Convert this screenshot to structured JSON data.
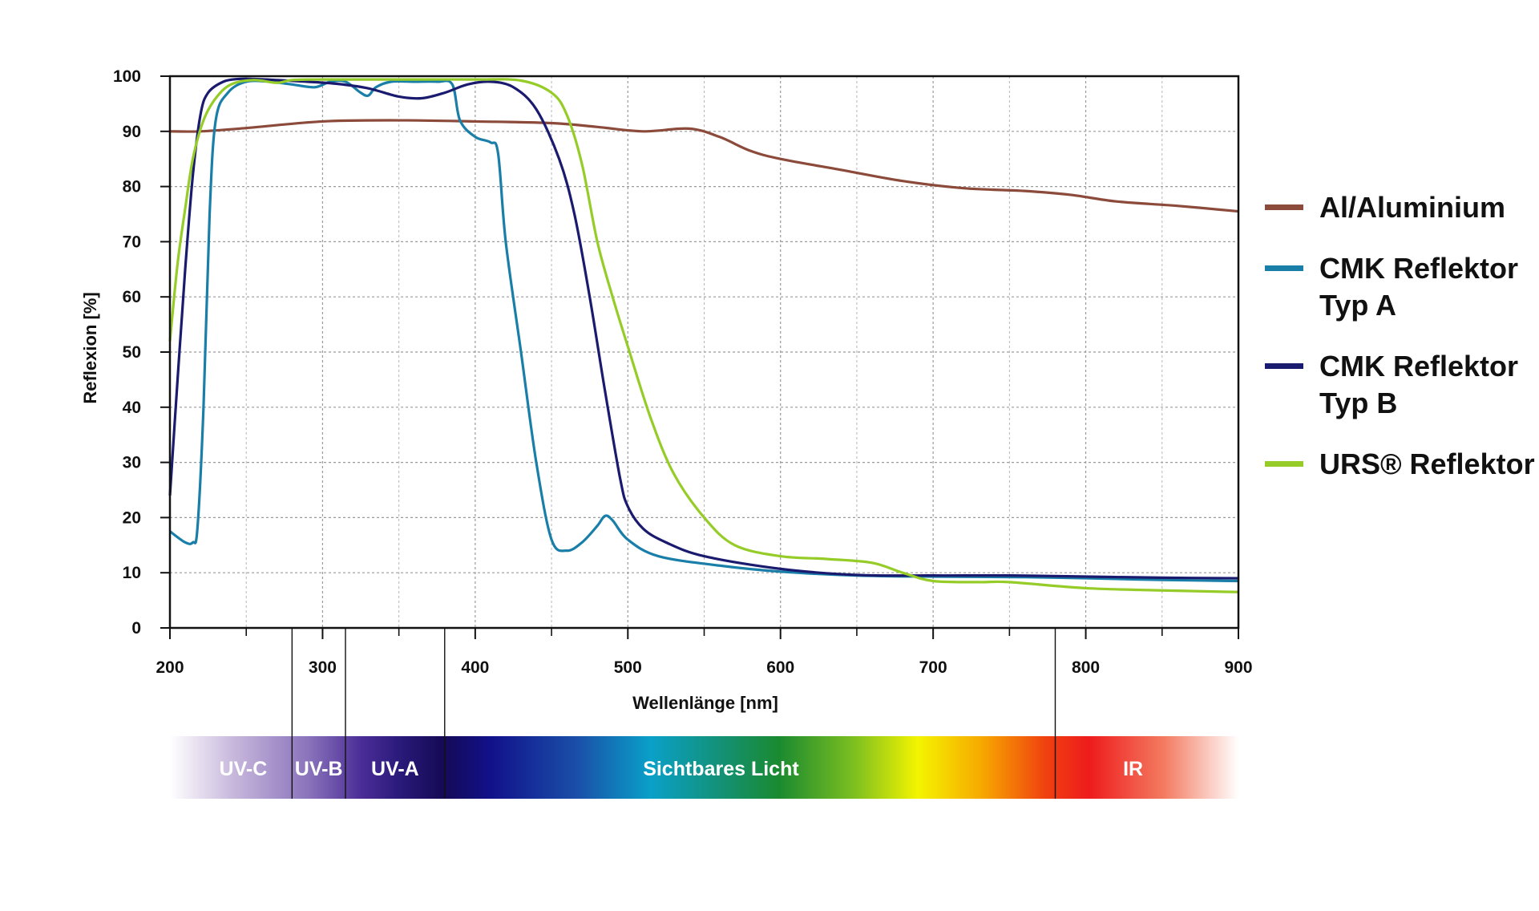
{
  "chart_data": {
    "type": "line",
    "title": "",
    "xlabel": "Wellenlänge [nm]",
    "ylabel": "Reflexion [%]",
    "xlim": [
      200,
      900
    ],
    "ylim": [
      0,
      100
    ],
    "xticks": [
      200,
      300,
      400,
      500,
      600,
      700,
      800,
      900
    ],
    "yticks": [
      0,
      10,
      20,
      30,
      40,
      50,
      60,
      70,
      80,
      90,
      100
    ],
    "grid": true,
    "legend_position": "right",
    "series": [
      {
        "name": "Al/Aluminium",
        "color": "#8B4A3A",
        "x": [
          200,
          220,
          250,
          300,
          350,
          400,
          450,
          480,
          510,
          540,
          560,
          580,
          600,
          640,
          680,
          720,
          760,
          790,
          820,
          860,
          900
        ],
        "y": [
          90,
          90,
          90.6,
          91.8,
          92,
          91.8,
          91.5,
          90.8,
          90,
          90.5,
          89,
          86.5,
          85,
          83,
          81,
          79.7,
          79.2,
          78.5,
          77.3,
          76.5,
          75.5
        ]
      },
      {
        "name": "CMK Reflektor\nTyp A",
        "color": "#1A7FA8",
        "x": [
          200,
          210,
          215,
          218,
          222,
          226,
          230,
          238,
          250,
          265,
          280,
          295,
          305,
          315,
          325,
          330,
          335,
          345,
          360,
          375,
          385,
          390,
          400,
          410,
          415,
          420,
          430,
          440,
          450,
          460,
          470,
          480,
          485,
          490,
          500,
          520,
          560,
          600,
          650,
          700,
          760,
          800,
          850,
          900
        ],
        "y": [
          17.5,
          15.5,
          15.5,
          18,
          40,
          75,
          92,
          97,
          99,
          99,
          98.5,
          98,
          99,
          99,
          97,
          96.5,
          98,
          99,
          99,
          99,
          98.5,
          92,
          89,
          88,
          86,
          70,
          50,
          30,
          16,
          14,
          15.5,
          18.5,
          20.3,
          19.5,
          16,
          13,
          11.3,
          10.2,
          9.5,
          9.3,
          9.2,
          9,
          8.7,
          8.5
        ]
      },
      {
        "name": "CMK Reflektor\nTyp B",
        "color": "#1A1A6E",
        "x": [
          200,
          205,
          210,
          215,
          220,
          225,
          235,
          245,
          255,
          270,
          290,
          310,
          330,
          350,
          365,
          380,
          395,
          410,
          425,
          440,
          455,
          465,
          475,
          485,
          495,
          500,
          510,
          525,
          550,
          600,
          650,
          700,
          750,
          800,
          850,
          900
        ],
        "y": [
          24,
          45,
          65,
          82,
          93,
          97,
          99,
          99.5,
          99.5,
          99.3,
          99,
          98.6,
          97.8,
          96.3,
          96,
          97,
          98.5,
          99,
          98,
          94,
          85,
          75,
          60,
          43,
          27,
          22,
          18,
          15.5,
          13,
          10.7,
          9.6,
          9.5,
          9.5,
          9.3,
          9.1,
          9
        ]
      },
      {
        "name": "URS® Reflektor",
        "color": "#96CC28",
        "x": [
          200,
          205,
          210,
          215,
          222,
          230,
          240,
          255,
          270,
          280,
          300,
          330,
          360,
          400,
          430,
          450,
          460,
          470,
          480,
          490,
          500,
          515,
          530,
          550,
          570,
          600,
          630,
          660,
          680,
          700,
          730,
          750,
          800,
          850,
          900
        ],
        "y": [
          52,
          66,
          76,
          85,
          92,
          96,
          98.5,
          99.3,
          98.8,
          99.3,
          99.4,
          99.4,
          99.4,
          99.4,
          99.2,
          97,
          93,
          84,
          70,
          60,
          51,
          38,
          28,
          20,
          15,
          13,
          12.5,
          11.8,
          10,
          8.5,
          8.3,
          8.3,
          7.2,
          6.8,
          6.5
        ]
      }
    ],
    "spectrum_bands": [
      {
        "label": "UV-C",
        "start": 200,
        "end": 280
      },
      {
        "label": "UV-B",
        "start": 280,
        "end": 315
      },
      {
        "label": "UV-A",
        "start": 315,
        "end": 380
      },
      {
        "label": "Sichtbares Licht",
        "start": 380,
        "end": 780
      },
      {
        "label": "IR",
        "start": 780,
        "end": 900
      }
    ]
  }
}
